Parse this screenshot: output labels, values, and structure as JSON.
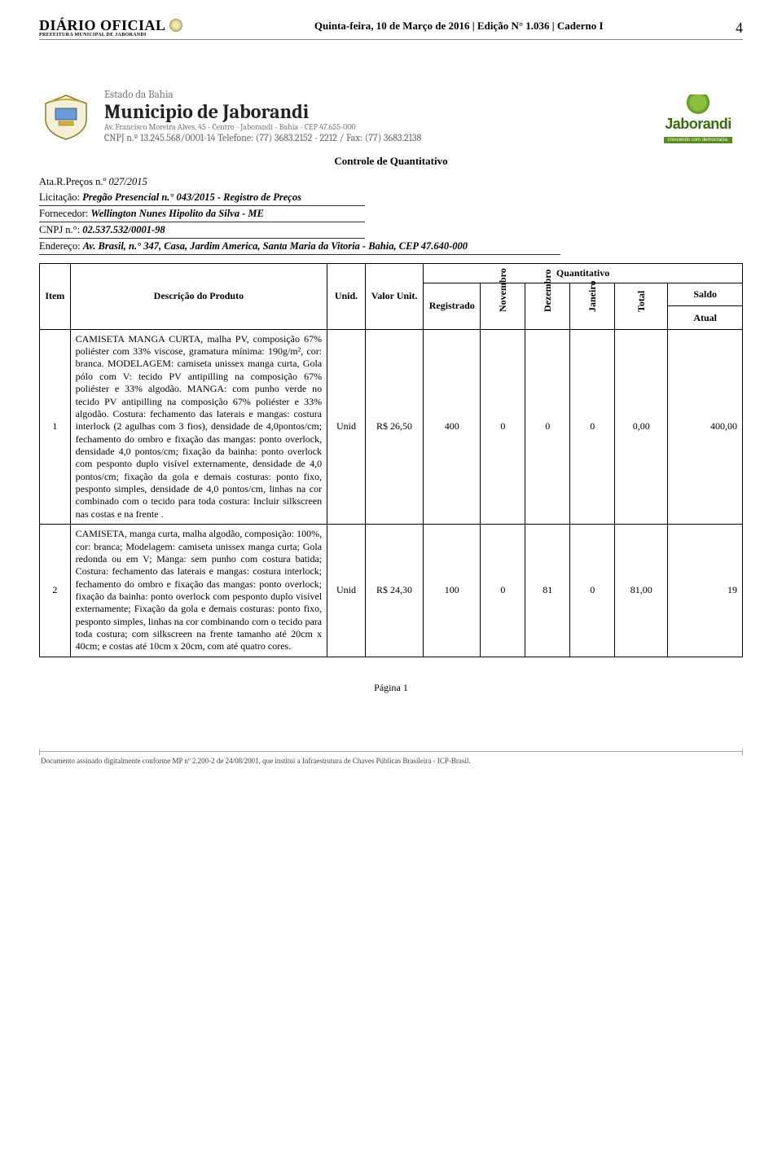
{
  "masthead": {
    "title": "DIÁRIO OFICIAL",
    "subtitle": "PREFEITURA MUNICIPAL DE JABORANDI",
    "issue_line": "Quinta-feira, 10 de Março de 2016 | Edição N° 1.036 | Caderno I",
    "page_number": "4"
  },
  "letterhead": {
    "state": "Estado da Bahia",
    "municipality": "Municipio de Jaborandi",
    "address": "Av. Francisco Moreira Alves, 45 - Centro - Jaborandi - Bahia - CEP 47.655-000",
    "contact": "CNPJ n.º 13.245.568/0001-14   Telefone: (77) 3683.2152 - 2212 / Fax: (77) 3683.2138",
    "brand_word": "Jaborandi",
    "brand_tag": "crescendo com democracia."
  },
  "doc_title": "Controle de Quantitativo",
  "meta": {
    "ata": "Ata.R.Preços n.",
    "ata_val": "027/2015",
    "licitacao_lbl": "Licitação:",
    "licitacao_val": "Pregão Presencial n.° 043/2015 - Registro de Preços",
    "fornecedor_lbl": "Fornecedor:",
    "fornecedor_val": "Wellington Nunes Hipolito da Silva - ME",
    "cnpj_lbl": "CNPJ n.°:",
    "cnpj_val": "02.537.532/0001-98",
    "endereco_lbl": "Endereço:",
    "endereco_val": "Av. Brasil, n.° 347, Casa, Jardim America, Santa Maria da Vitoria - Bahia, CEP 47.640-000"
  },
  "table": {
    "headers": {
      "item": "Item",
      "desc": "Descrição do Produto",
      "unid": "Unid.",
      "valor": "Valor Unit.",
      "quantitativo": "Quantitativo",
      "registrado": "Registrado",
      "novembro": "Novembro",
      "dezembro": "Dezembro",
      "janeiro": "Janeiro",
      "total": "Total",
      "saldo": "Saldo",
      "atual": "Atual"
    },
    "rows": [
      {
        "item": "1",
        "desc": "CAMISETA MANGA CURTA, malha PV, composição 67% poliéster com 33% viscose, gramatura mínima: 190g/m², cor: branca. MODELAGEM: camiseta unissex manga curta, Gola pólo com V: tecido PV antipilling na composição 67% poliéster e 33% algodão. MANGA: com punho verde no tecido PV antipilling na composição 67% poliéster e 33% algodão. Costura: fechamento das laterais e mangas: costura interlock (2 agulhas com 3 fios), densidade de 4,0pontos/cm; fechamento do ombro e fixação das mangas: ponto overlock, densidade 4,0 pontos/cm; fixação da bainha: ponto overlock com pesponto duplo visível externamente, densidade de 4,0 pontos/cm; fixação da gola e demais costuras: ponto fixo, pesponto simples, densidade de 4,0 pontos/cm, linhas na cor combinado com o tecido para toda costura: Incluir silkscreen nas costas e na frente .",
        "unid": "Unid",
        "valor": "R$ 26,50",
        "registrado": "400",
        "novembro": "0",
        "dezembro": "0",
        "janeiro": "0",
        "total": "0,00",
        "saldo": "400,00"
      },
      {
        "item": "2",
        "desc": "CAMISETA, manga curta, malha algodão, composição: 100%, cor: branca; Modelagem: camiseta unissex manga curta; Gola redonda ou em V; Manga: sem punho com costura batida; Costura: fechamento das laterais e mangas: costura interlock; fechamento do ombro e fixação das mangas: ponto overlock; fixação da bainha: ponto overlock com pesponto duplo visível externamente; Fixação da gola e demais costuras: ponto fixo, pesponto simples, linhas na cor combinando com o tecido para toda costura; com silkscreen na frente tamanho até 20cm x 40cm; e costas até 10cm x 20cm, com até quatro cores.",
        "unid": "Unid",
        "valor": "R$ 24,30",
        "registrado": "100",
        "novembro": "0",
        "dezembro": "81",
        "janeiro": "0",
        "total": "81,00",
        "saldo": "19"
      }
    ]
  },
  "footer_center": "Página 1",
  "signature": "Documento assinado digitalmente conforme MP nº 2.200-2 de 24/08/2001, que institui a Infraestrutura de Chaves Públicas Brasileira - ICP-Brasil."
}
